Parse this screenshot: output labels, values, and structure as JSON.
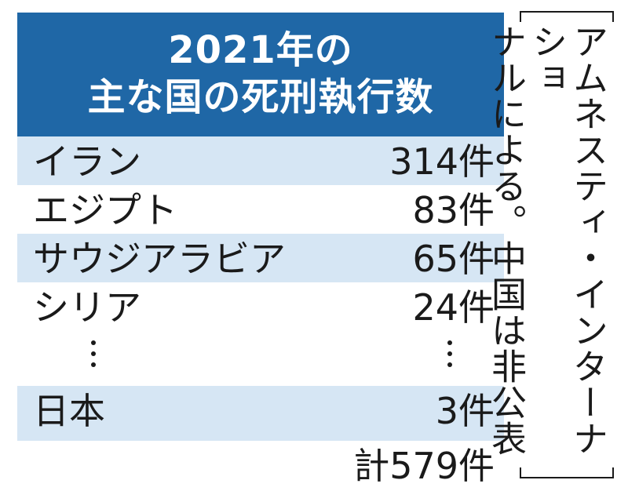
{
  "chart_data": {
    "type": "table",
    "title_line1": "2021年の",
    "title_line2": "主な国の死刑執行数",
    "rows": [
      {
        "country": "イラン",
        "value": 314,
        "label": "314件"
      },
      {
        "country": "エジプト",
        "value": 83,
        "label": "83件"
      },
      {
        "country": "サウジアラビア",
        "value": 65,
        "label": "65件"
      },
      {
        "country": "シリア",
        "value": 24,
        "label": "24件"
      },
      {
        "country": "日本",
        "value": 3,
        "label": "3件"
      }
    ],
    "total": {
      "value": 579,
      "label": "計579件"
    },
    "note_line1": "アムネスティ・インターナショ",
    "note_line2": "ナルによる。中国は非公表"
  },
  "colors": {
    "header_bg": "#1f67a6",
    "row_shade": "#d6e6f4",
    "text": "#1a1a1a"
  }
}
